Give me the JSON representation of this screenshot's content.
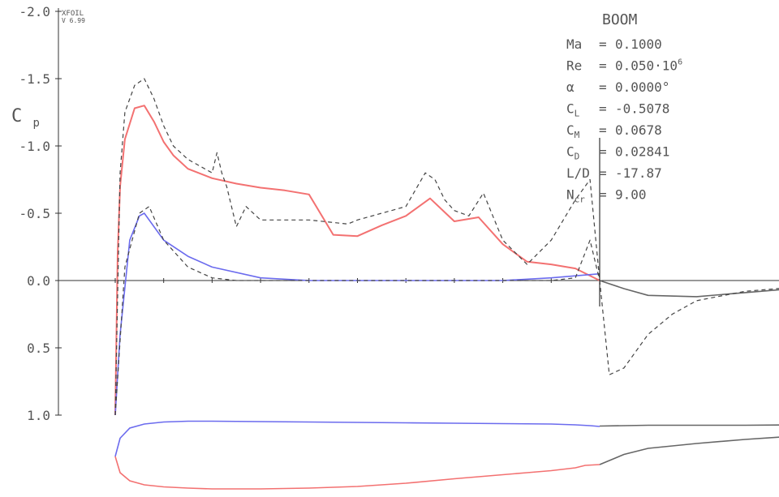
{
  "chart_data": {
    "type": "line",
    "program": "XFOIL",
    "version": "V 6.99",
    "airfoil_name": "BOOM",
    "ylabel": "C",
    "ylabel_sub": "p",
    "ylim": [
      1.0,
      -2.0
    ],
    "y_ticks": [
      "-2.0",
      "-1.5",
      "-1.0",
      "-0.5",
      "0.0",
      "0.5",
      "1.0"
    ],
    "x_range": [
      0.0,
      1.4
    ],
    "params": [
      {
        "name": "Ma",
        "value": "0.1000"
      },
      {
        "name": "Re",
        "value": "0.050·10",
        "exp": "6"
      },
      {
        "name": "α",
        "value": "0.0000°"
      },
      {
        "name": "C",
        "sub": "L",
        "value": "-0.5078"
      },
      {
        "name": "C",
        "sub": "M",
        "value": "0.0678"
      },
      {
        "name": "C",
        "sub": "D",
        "value": "0.02841"
      },
      {
        "name": "L/D",
        "value": "-17.87"
      },
      {
        "name": "N",
        "sub": "cr",
        "value": "9.00"
      }
    ],
    "colors": {
      "upper": "#f37171",
      "lower": "#6b6bee",
      "wake": "#666666",
      "inviscid": "#444444",
      "axis": "#333333"
    },
    "series": [
      {
        "role": "viscous-upper",
        "x": [
          0.0,
          0.005,
          0.01,
          0.02,
          0.04,
          0.06,
          0.08,
          0.1,
          0.12,
          0.15,
          0.2,
          0.25,
          0.3,
          0.35,
          0.4,
          0.45,
          0.5,
          0.55,
          0.6,
          0.65,
          0.7,
          0.75,
          0.8,
          0.85,
          0.9,
          0.95,
          1.0
        ],
        "y": [
          1.0,
          -0.2,
          -0.7,
          -1.05,
          -1.28,
          -1.3,
          -1.18,
          -1.03,
          -0.93,
          -0.83,
          -0.76,
          -0.72,
          -0.69,
          -0.67,
          -0.64,
          -0.34,
          -0.33,
          -0.41,
          -0.48,
          -0.61,
          -0.44,
          -0.47,
          -0.27,
          -0.14,
          -0.12,
          -0.09,
          0.0
        ]
      },
      {
        "role": "viscous-lower",
        "x": [
          0.0,
          0.01,
          0.03,
          0.05,
          0.06,
          0.08,
          0.1,
          0.15,
          0.2,
          0.3,
          0.4,
          0.5,
          0.6,
          0.7,
          0.8,
          0.9,
          1.0
        ],
        "y": [
          1.0,
          0.4,
          -0.3,
          -0.48,
          -0.5,
          -0.4,
          -0.3,
          -0.18,
          -0.1,
          -0.02,
          0.0,
          0.0,
          0.0,
          0.0,
          0.0,
          -0.02,
          -0.05
        ]
      },
      {
        "role": "wake",
        "x": [
          1.0,
          1.05,
          1.1,
          1.2,
          1.3,
          1.4
        ],
        "y": [
          0.0,
          0.06,
          0.11,
          0.12,
          0.09,
          0.06
        ]
      },
      {
        "role": "inviscid-upper",
        "x": [
          0.0,
          0.01,
          0.02,
          0.04,
          0.06,
          0.08,
          0.1,
          0.12,
          0.15,
          0.2,
          0.21,
          0.22,
          0.23,
          0.25,
          0.27,
          0.3,
          0.35,
          0.4,
          0.48,
          0.5,
          0.55,
          0.6,
          0.64,
          0.66,
          0.68,
          0.7,
          0.73,
          0.76,
          0.8,
          0.85,
          0.9,
          0.95,
          0.98,
          1.0
        ],
        "y": [
          1.0,
          -0.8,
          -1.25,
          -1.45,
          -1.5,
          -1.35,
          -1.15,
          -1.0,
          -0.9,
          -0.8,
          -0.95,
          -0.8,
          -0.7,
          -0.4,
          -0.55,
          -0.45,
          -0.45,
          -0.45,
          -0.42,
          -0.45,
          -0.5,
          -0.55,
          -0.8,
          -0.75,
          -0.6,
          -0.52,
          -0.48,
          -0.65,
          -0.3,
          -0.12,
          -0.3,
          -0.6,
          -0.75,
          0.0
        ]
      },
      {
        "role": "inviscid-lower",
        "x": [
          0.0,
          0.02,
          0.05,
          0.07,
          0.1,
          0.15,
          0.2,
          0.25,
          0.3,
          0.4,
          0.5,
          0.6,
          0.7,
          0.8,
          0.9,
          0.95,
          0.98,
          1.0
        ],
        "y": [
          1.0,
          -0.1,
          -0.5,
          -0.55,
          -0.3,
          -0.1,
          -0.02,
          0.0,
          0.0,
          0.0,
          0.0,
          0.0,
          0.0,
          0.0,
          0.0,
          -0.02,
          -0.3,
          0.0
        ]
      },
      {
        "role": "inviscid-wake",
        "x": [
          1.0,
          1.02,
          1.05,
          1.1,
          1.15,
          1.2,
          1.3,
          1.4
        ],
        "y": [
          0.0,
          0.7,
          0.65,
          0.4,
          0.25,
          0.15,
          0.08,
          0.05
        ]
      }
    ],
    "geometry": {
      "upper_x": [
        0.0,
        0.01,
        0.03,
        0.06,
        0.1,
        0.15,
        0.2,
        0.3,
        0.4,
        0.5,
        0.6,
        0.7,
        0.8,
        0.9,
        0.95,
        0.98,
        1.0
      ],
      "upper_y": [
        0.0,
        0.045,
        0.07,
        0.08,
        0.085,
        0.087,
        0.087,
        0.086,
        0.085,
        0.084,
        0.083,
        0.082,
        0.081,
        0.08,
        0.078,
        0.076,
        0.074
      ],
      "lower_x": [
        0.0,
        0.01,
        0.03,
        0.06,
        0.1,
        0.15,
        0.2,
        0.3,
        0.4,
        0.5,
        0.6,
        0.7,
        0.8,
        0.85,
        0.9,
        0.95,
        0.97,
        1.0
      ],
      "lower_y": [
        0.0,
        -0.04,
        -0.06,
        -0.07,
        -0.075,
        -0.078,
        -0.08,
        -0.08,
        -0.078,
        -0.074,
        -0.066,
        -0.055,
        -0.045,
        -0.04,
        -0.035,
        -0.028,
        -0.022,
        -0.02
      ],
      "wake_upper_x": [
        1.0,
        1.1,
        1.2,
        1.3,
        1.4
      ],
      "wake_upper_y": [
        0.075,
        0.077,
        0.077,
        0.077,
        0.078
      ],
      "wake_lower_x": [
        1.0,
        1.05,
        1.1,
        1.2,
        1.3,
        1.4
      ],
      "wake_lower_y": [
        -0.02,
        0.005,
        0.02,
        0.032,
        0.042,
        0.05
      ]
    }
  }
}
